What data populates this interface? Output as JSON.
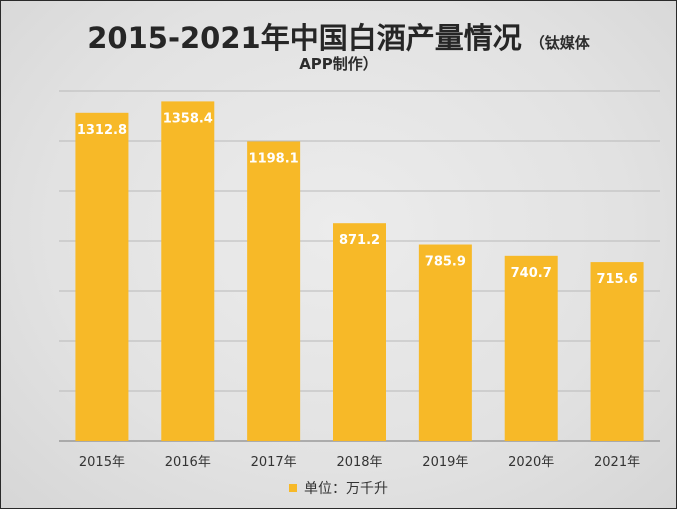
{
  "title": "2015-2021年中国白酒产量情况",
  "source_line1": "（钛媒体",
  "source_line2": "APP制作）",
  "legend_label": "单位：万千升",
  "colors": {
    "bar": "#f7b928",
    "grid": "#b9b9b9",
    "label": "#ffffff"
  },
  "chart_data": {
    "type": "bar",
    "title": "2015-2021年中国白酒产量情况",
    "categories": [
      "2015年",
      "2016年",
      "2017年",
      "2018年",
      "2019年",
      "2020年",
      "2021年"
    ],
    "series": [
      {
        "name": "单位：万千升",
        "values": [
          1312.8,
          1358.4,
          1198.1,
          871.2,
          785.9,
          740.7,
          715.6
        ]
      }
    ],
    "xlabel": "",
    "ylabel": "",
    "ylim": [
      0,
      1400
    ],
    "grid": true,
    "legend": "bottom",
    "data_labels": true
  }
}
